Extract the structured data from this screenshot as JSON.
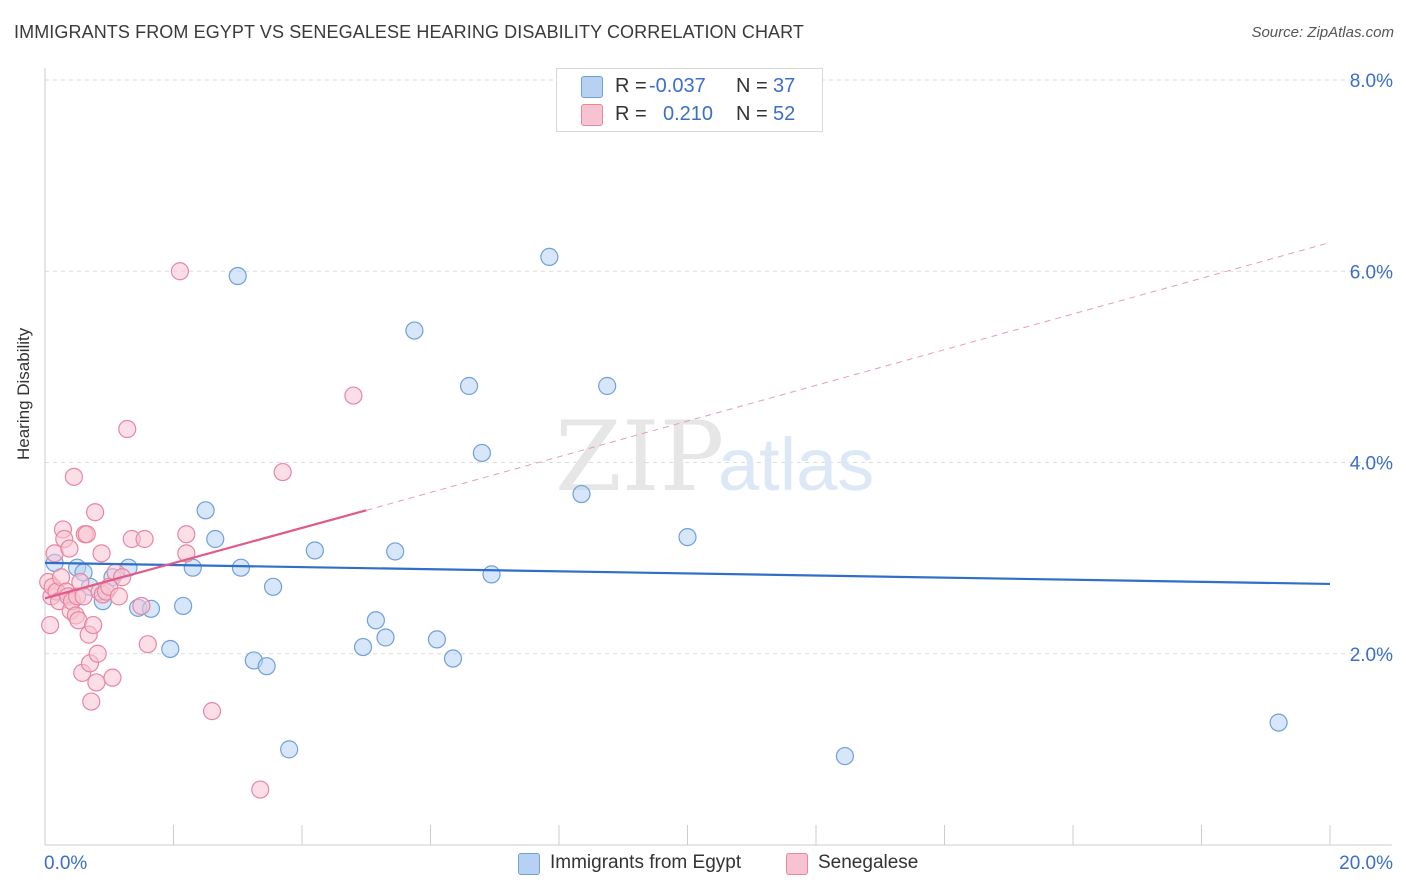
{
  "title": "IMMIGRANTS FROM EGYPT VS SENEGALESE HEARING DISABILITY CORRELATION CHART",
  "source": "Source: ZipAtlas.com",
  "watermark": {
    "zip": "ZIP",
    "atlas": "atlas"
  },
  "legend": {
    "r_label": "R =",
    "n_label": "N =",
    "series": [
      {
        "name": "Immigrants from Egypt",
        "r": "-0.037",
        "n": "37",
        "color": "#b7d1f2",
        "edge": "#6fa0dd"
      },
      {
        "name": "Senegalese",
        "r": "0.210",
        "n": "52",
        "color": "#f7c3d3",
        "edge": "#e9869f"
      }
    ]
  },
  "chart_data": {
    "type": "scatter",
    "title": "IMMIGRANTS FROM EGYPT VS SENEGALESE HEARING DISABILITY CORRELATION CHART",
    "xlabel": "",
    "ylabel": "Hearing Disability",
    "xlim": [
      0,
      20
    ],
    "ylim": [
      0,
      8
    ],
    "x_tick_labels": [
      "0.0%",
      "20.0%"
    ],
    "y_ticks": [
      2,
      4,
      6,
      8
    ],
    "y_tick_labels": [
      "2.0%",
      "4.0%",
      "6.0%",
      "8.0%"
    ],
    "grid": true,
    "legend_position": "top-center",
    "series": [
      {
        "name": "Immigrants from Egypt",
        "color": "#6fa0dd",
        "trend_color": "#2f6fc8",
        "trend": {
          "x": [
            0,
            20
          ],
          "y": [
            2.95,
            2.73
          ],
          "dashed_from": null
        },
        "points": [
          [
            0.15,
            2.95
          ],
          [
            0.5,
            2.9
          ],
          [
            0.7,
            2.7
          ],
          [
            0.9,
            2.55
          ],
          [
            1.05,
            2.8
          ],
          [
            1.3,
            2.9
          ],
          [
            1.45,
            2.48
          ],
          [
            1.65,
            2.47
          ],
          [
            1.95,
            2.05
          ],
          [
            2.15,
            2.5
          ],
          [
            2.3,
            2.9
          ],
          [
            2.5,
            3.5
          ],
          [
            2.65,
            3.2
          ],
          [
            3.0,
            5.95
          ],
          [
            3.05,
            2.9
          ],
          [
            3.25,
            1.93
          ],
          [
            3.45,
            1.87
          ],
          [
            3.55,
            2.7
          ],
          [
            3.8,
            1.0
          ],
          [
            4.2,
            3.08
          ],
          [
            4.95,
            2.07
          ],
          [
            5.15,
            2.35
          ],
          [
            5.3,
            2.17
          ],
          [
            5.45,
            3.07
          ],
          [
            5.75,
            5.38
          ],
          [
            6.1,
            2.15
          ],
          [
            6.35,
            1.95
          ],
          [
            6.6,
            4.8
          ],
          [
            6.8,
            4.1
          ],
          [
            6.95,
            2.83
          ],
          [
            7.85,
            6.15
          ],
          [
            8.35,
            3.67
          ],
          [
            8.75,
            4.8
          ],
          [
            10.0,
            3.22
          ],
          [
            12.45,
            0.93
          ],
          [
            19.2,
            1.28
          ],
          [
            0.6,
            2.85
          ]
        ]
      },
      {
        "name": "Senegalese",
        "color": "#e9869f",
        "trend_color": "#e05a8a",
        "trend": {
          "x": [
            0,
            5
          ],
          "y": [
            2.58,
            3.5
          ],
          "dashed_to": [
            20,
            6.3
          ]
        },
        "points": [
          [
            0.05,
            2.75
          ],
          [
            0.08,
            2.3
          ],
          [
            0.1,
            2.6
          ],
          [
            0.12,
            2.7
          ],
          [
            0.15,
            3.05
          ],
          [
            0.18,
            2.65
          ],
          [
            0.22,
            2.55
          ],
          [
            0.25,
            2.8
          ],
          [
            0.28,
            3.3
          ],
          [
            0.3,
            3.2
          ],
          [
            0.33,
            2.65
          ],
          [
            0.36,
            2.6
          ],
          [
            0.38,
            3.1
          ],
          [
            0.4,
            2.45
          ],
          [
            0.42,
            2.55
          ],
          [
            0.45,
            3.85
          ],
          [
            0.48,
            2.4
          ],
          [
            0.5,
            2.6
          ],
          [
            0.52,
            2.35
          ],
          [
            0.55,
            2.75
          ],
          [
            0.58,
            1.8
          ],
          [
            0.6,
            2.6
          ],
          [
            0.62,
            3.25
          ],
          [
            0.65,
            3.25
          ],
          [
            0.68,
            2.2
          ],
          [
            0.7,
            1.9
          ],
          [
            0.72,
            1.5
          ],
          [
            0.75,
            2.3
          ],
          [
            0.78,
            3.48
          ],
          [
            0.8,
            1.7
          ],
          [
            0.82,
            2.0
          ],
          [
            0.85,
            2.65
          ],
          [
            0.88,
            3.05
          ],
          [
            0.9,
            2.62
          ],
          [
            0.95,
            2.65
          ],
          [
            1.0,
            2.7
          ],
          [
            1.05,
            1.75
          ],
          [
            1.1,
            2.85
          ],
          [
            1.15,
            2.6
          ],
          [
            1.2,
            2.8
          ],
          [
            1.28,
            4.35
          ],
          [
            1.35,
            3.2
          ],
          [
            1.5,
            2.5
          ],
          [
            1.55,
            3.2
          ],
          [
            1.6,
            2.1
          ],
          [
            2.1,
            6.0
          ],
          [
            2.2,
            3.05
          ],
          [
            2.2,
            3.25
          ],
          [
            2.6,
            1.4
          ],
          [
            3.35,
            0.58
          ],
          [
            3.7,
            3.9
          ],
          [
            4.8,
            4.7
          ]
        ]
      }
    ]
  }
}
